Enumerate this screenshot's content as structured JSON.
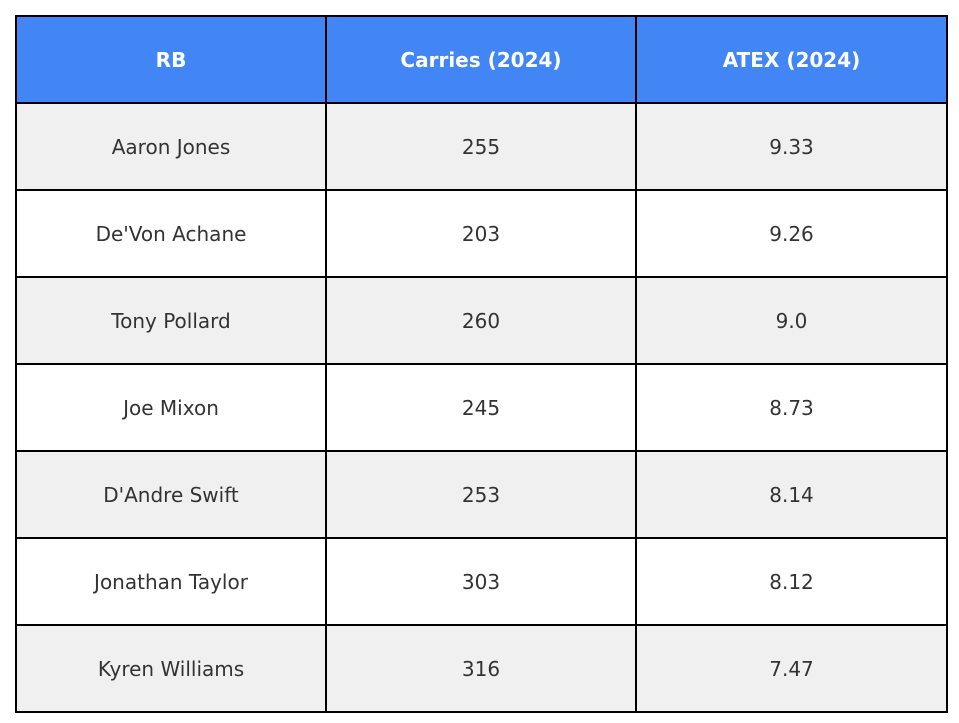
{
  "chart_data": {
    "type": "table",
    "columns": [
      "RB",
      "Carries (2024)",
      "ATEX (2024)"
    ],
    "rows": [
      [
        "Aaron Jones",
        "255",
        "9.33"
      ],
      [
        "De'Von Achane",
        "203",
        "9.26"
      ],
      [
        "Tony Pollard",
        "260",
        "9.0"
      ],
      [
        "Joe Mixon",
        "245",
        "8.73"
      ],
      [
        "D'Andre Swift",
        "253",
        "8.14"
      ],
      [
        "Jonathan Taylor",
        "303",
        "8.12"
      ],
      [
        "Kyren Williams",
        "316",
        "7.47"
      ]
    ],
    "header_color": "#4285f4",
    "header_text_color": "#ffffff",
    "stripe_color": "#f0f0f0",
    "border_color": "#000000"
  }
}
